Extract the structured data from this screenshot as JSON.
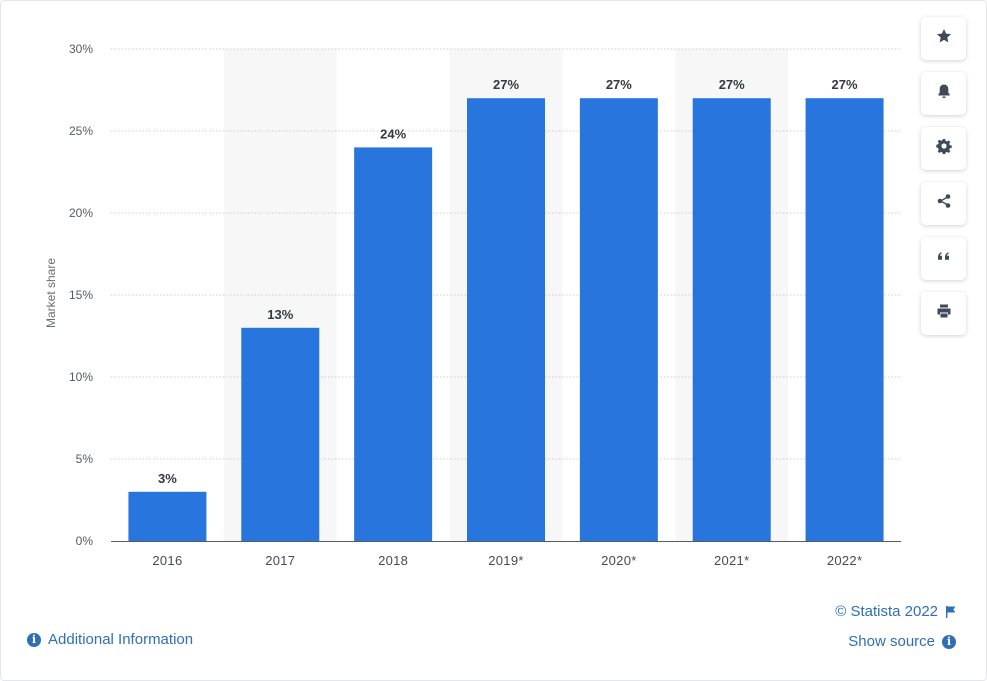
{
  "chart_data": {
    "type": "bar",
    "categories": [
      "2016",
      "2017",
      "2018",
      "2019*",
      "2020*",
      "2021*",
      "2022*"
    ],
    "values": [
      3,
      13,
      24,
      27,
      27,
      27,
      27
    ],
    "value_labels": [
      "3%",
      "13%",
      "24%",
      "27%",
      "27%",
      "27%",
      "27%"
    ],
    "title": "",
    "xlabel": "",
    "ylabel": "Market share",
    "ylim": [
      0,
      30
    ],
    "yticks": [
      0,
      5,
      10,
      15,
      20,
      25,
      30
    ],
    "ytick_labels": [
      "0%",
      "5%",
      "10%",
      "15%",
      "20%",
      "25%",
      "30%"
    ],
    "grid": true,
    "bar_color": "#2876dd",
    "band_color": "#f7f7f8"
  },
  "toolbar": {
    "buttons": [
      {
        "icon": "star-icon",
        "name": "favorite-button"
      },
      {
        "icon": "bell-icon",
        "name": "notification-button"
      },
      {
        "icon": "gear-icon",
        "name": "settings-button"
      },
      {
        "icon": "share-icon",
        "name": "share-button"
      },
      {
        "icon": "quote-icon",
        "name": "cite-button"
      },
      {
        "icon": "print-icon",
        "name": "print-button"
      }
    ]
  },
  "footer": {
    "additional_info": "Additional Information",
    "copyright": "© Statista 2022",
    "show_source": "Show source"
  }
}
